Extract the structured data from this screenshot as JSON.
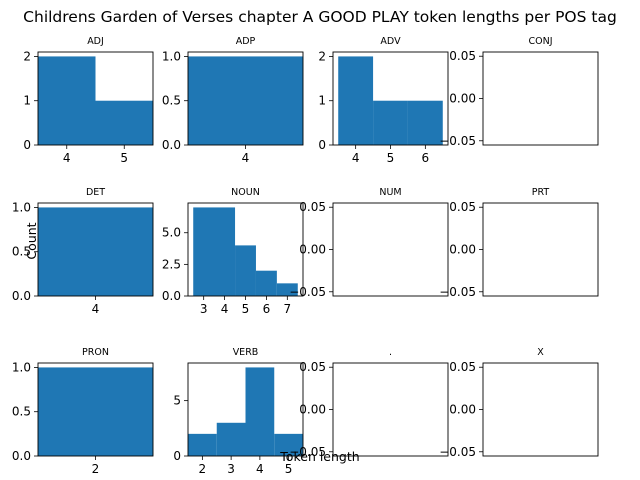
{
  "figure": {
    "title": "Childrens Garden of Verses chapter A GOOD PLAY token lengths per POS tag",
    "xlabel": "Token length",
    "ylabel": "Count",
    "bar_color": "#1f77b4"
  },
  "chart_data": [
    {
      "type": "bar",
      "title": "ADJ",
      "bins": [
        [
          3.5,
          4.5
        ],
        [
          4.5,
          5.5
        ]
      ],
      "values": [
        2,
        1
      ],
      "xticks": [
        4,
        5
      ],
      "yticks": [
        0,
        1,
        2
      ],
      "xlim": [
        3.5,
        5.5
      ],
      "ylim": [
        0,
        2.1
      ]
    },
    {
      "type": "bar",
      "title": "ADP",
      "bins": [
        [
          3.5,
          4.5
        ]
      ],
      "values": [
        1
      ],
      "xticks": [
        4
      ],
      "yticks": [
        "0.0",
        "0.5",
        "1.0"
      ],
      "xlim": [
        3.5,
        4.5
      ],
      "ylim": [
        0,
        1.05
      ]
    },
    {
      "type": "bar",
      "title": "ADV",
      "bins": [
        [
          3.5,
          4.5
        ],
        [
          4.5,
          5.5
        ],
        [
          5.5,
          6.5
        ]
      ],
      "values": [
        2,
        1,
        1
      ],
      "xticks": [
        4,
        5,
        6
      ],
      "yticks": [
        0,
        1,
        2
      ],
      "xlim": [
        3.35,
        6.65
      ],
      "ylim": [
        0,
        2.1
      ]
    },
    {
      "type": "bar",
      "title": "CONJ",
      "bins": [],
      "values": [],
      "xticks": [],
      "yticks": [
        "−0.05",
        "0.00",
        "0.05"
      ],
      "xlim": [
        0,
        1
      ],
      "ylim": [
        -0.055,
        0.055
      ]
    },
    {
      "type": "bar",
      "title": "DET",
      "bins": [
        [
          3.5,
          4.5
        ]
      ],
      "values": [
        1
      ],
      "xticks": [
        4
      ],
      "yticks": [
        "0.0",
        "0.5",
        "1.0"
      ],
      "xlim": [
        3.5,
        4.5
      ],
      "ylim": [
        0,
        1.05
      ]
    },
    {
      "type": "bar",
      "title": "NOUN",
      "bins": [
        [
          2.5,
          4.5
        ],
        [
          4.5,
          5.5
        ],
        [
          5.5,
          6.5
        ],
        [
          6.5,
          7.5
        ]
      ],
      "values": [
        7,
        4,
        2,
        1
      ],
      "xticks": [
        3,
        4,
        5,
        6,
        7
      ],
      "yticks": [
        "0.0",
        "2.5",
        "5.0"
      ],
      "xlim": [
        2.25,
        7.75
      ],
      "ylim": [
        0,
        7.35
      ]
    },
    {
      "type": "bar",
      "title": "NUM",
      "bins": [],
      "values": [],
      "xticks": [],
      "yticks": [
        "−0.05",
        "0.00",
        "0.05"
      ],
      "xlim": [
        0,
        1
      ],
      "ylim": [
        -0.055,
        0.055
      ]
    },
    {
      "type": "bar",
      "title": "PRT",
      "bins": [],
      "values": [],
      "xticks": [],
      "yticks": [
        "−0.05",
        "0.00",
        "0.05"
      ],
      "xlim": [
        0,
        1
      ],
      "ylim": [
        -0.055,
        0.055
      ]
    },
    {
      "type": "bar",
      "title": "PRON",
      "bins": [
        [
          1.5,
          2.5
        ]
      ],
      "values": [
        1
      ],
      "xticks": [
        2
      ],
      "yticks": [
        "0.0",
        "0.5",
        "1.0"
      ],
      "xlim": [
        1.5,
        2.5
      ],
      "ylim": [
        0,
        1.05
      ]
    },
    {
      "type": "bar",
      "title": "VERB",
      "bins": [
        [
          1.5,
          2.5
        ],
        [
          2.5,
          3.5
        ],
        [
          3.5,
          4.5
        ],
        [
          4.5,
          5.5
        ]
      ],
      "values": [
        2,
        3,
        8,
        2
      ],
      "xticks": [
        2,
        3,
        4,
        5
      ],
      "yticks": [
        0,
        5
      ],
      "xlim": [
        1.5,
        5.5
      ],
      "ylim": [
        0,
        8.4
      ]
    },
    {
      "type": "bar",
      "title": ".",
      "bins": [],
      "values": [],
      "xticks": [],
      "yticks": [
        "−0.05",
        "0.00",
        "0.05"
      ],
      "xlim": [
        0,
        1
      ],
      "ylim": [
        -0.055,
        0.055
      ]
    },
    {
      "type": "bar",
      "title": "X",
      "bins": [],
      "values": [],
      "xticks": [],
      "yticks": [
        "−0.05",
        "0.00",
        "0.05"
      ],
      "xlim": [
        0,
        1
      ],
      "ylim": [
        -0.055,
        0.055
      ]
    }
  ]
}
